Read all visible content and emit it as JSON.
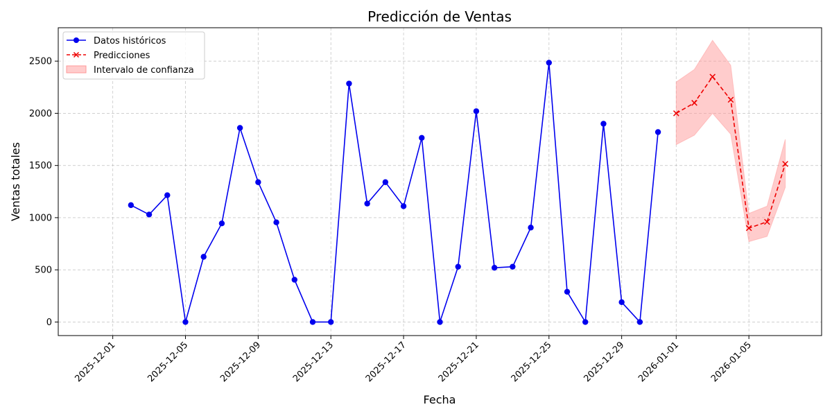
{
  "chart_data": {
    "type": "line",
    "title": "Predicción de Ventas",
    "xlabel": "Fecha",
    "ylabel": "Ventas totales",
    "grid": true,
    "legend_position": "top-left",
    "xlim": [
      "2025-11-28",
      "2026-01-09"
    ],
    "ylim": [
      -130,
      2820
    ],
    "x_ticks": [
      "2025-12-01",
      "2025-12-05",
      "2025-12-09",
      "2025-12-13",
      "2025-12-17",
      "2025-12-21",
      "2025-12-25",
      "2025-12-29",
      "2026-01-01",
      "2026-01-05"
    ],
    "y_ticks": [
      0,
      500,
      1000,
      1500,
      2000,
      2500
    ],
    "historical": {
      "name": "Datos históricos",
      "color": "#0000ee",
      "marker": "circle",
      "x": [
        "2025-12-02",
        "2025-12-03",
        "2025-12-04",
        "2025-12-05",
        "2025-12-06",
        "2025-12-07",
        "2025-12-08",
        "2025-12-09",
        "2025-12-10",
        "2025-12-11",
        "2025-12-12",
        "2025-12-13",
        "2025-12-14",
        "2025-12-15",
        "2025-12-16",
        "2025-12-17",
        "2025-12-18",
        "2025-12-19",
        "2025-12-20",
        "2025-12-21",
        "2025-12-22",
        "2025-12-23",
        "2025-12-24",
        "2025-12-25",
        "2025-12-26",
        "2025-12-27",
        "2025-12-28",
        "2025-12-29",
        "2025-12-30",
        "2025-12-31"
      ],
      "values": [
        1120,
        1030,
        1215,
        0,
        625,
        945,
        1860,
        1340,
        955,
        405,
        0,
        0,
        2285,
        1135,
        1340,
        1110,
        1765,
        0,
        530,
        2020,
        520,
        530,
        905,
        2485,
        290,
        0,
        1900,
        190,
        0,
        1820
      ]
    },
    "predictions": {
      "name": "Predicciones",
      "color": "#ee0000",
      "marker": "x",
      "line_style": "dashed",
      "x": [
        "2026-01-01",
        "2026-01-02",
        "2026-01-03",
        "2026-01-04",
        "2026-01-05",
        "2026-01-06",
        "2026-01-07"
      ],
      "values": [
        2000,
        2100,
        2350,
        2130,
        900,
        960,
        1515
      ]
    },
    "confidence_interval": {
      "name": "Intervalo de confianza",
      "color": "#ff9999",
      "x": [
        "2026-01-01",
        "2026-01-02",
        "2026-01-03",
        "2026-01-04",
        "2026-01-05",
        "2026-01-06",
        "2026-01-07"
      ],
      "lower": [
        1700,
        1790,
        2000,
        1800,
        770,
        820,
        1290
      ],
      "upper": [
        2300,
        2420,
        2700,
        2460,
        1040,
        1110,
        1750
      ]
    }
  }
}
